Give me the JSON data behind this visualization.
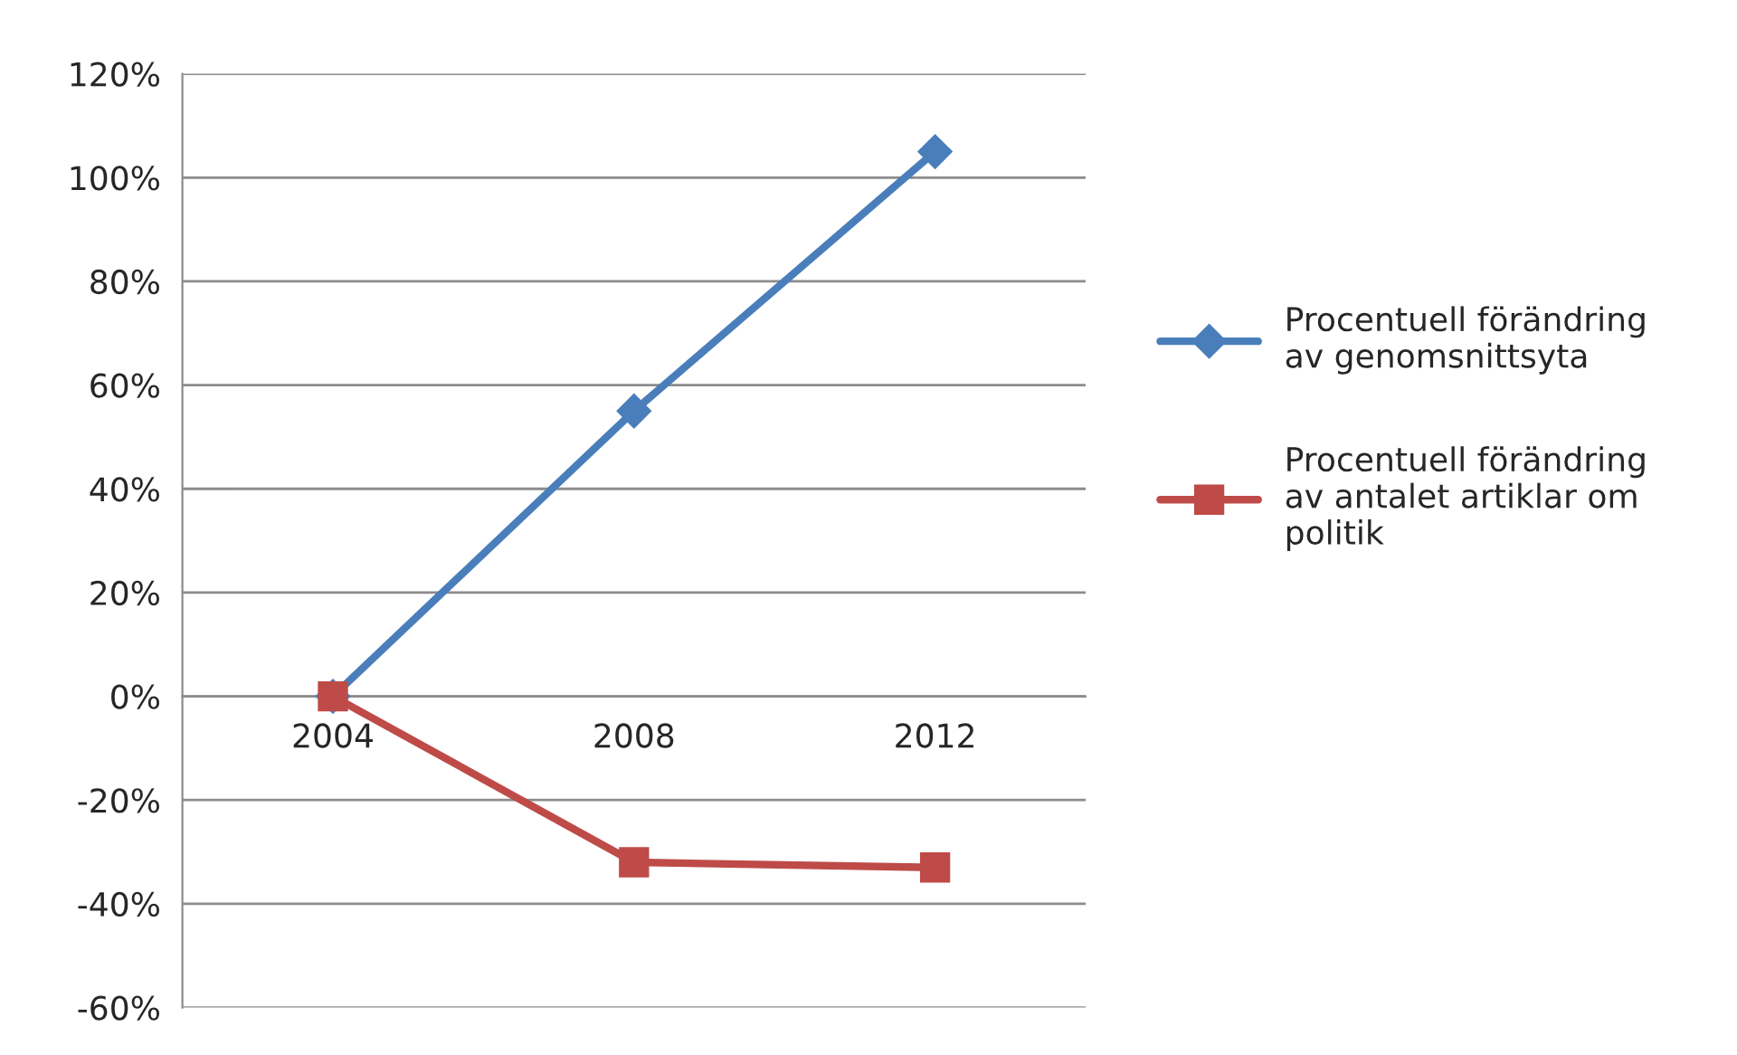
{
  "chart_data": {
    "type": "line",
    "categories": [
      "2004",
      "2008",
      "2012"
    ],
    "series": [
      {
        "name": "Procentuell förändring av genomsnittsyta",
        "color": "#4a7ebb",
        "values": [
          0,
          55,
          105
        ],
        "marker": "diamond"
      },
      {
        "name": "Procentuell förändring av antalet artiklar om politik",
        "color": "#be4b48",
        "values": [
          0,
          -32,
          -33
        ],
        "marker": "square"
      }
    ],
    "ylim": [
      -60,
      120
    ],
    "yticks": [
      {
        "value": -60,
        "label": "-60%"
      },
      {
        "value": -40,
        "label": "-40%"
      },
      {
        "value": -20,
        "label": "-20%"
      },
      {
        "value": 0,
        "label": "0%"
      },
      {
        "value": 20,
        "label": "20%"
      },
      {
        "value": 40,
        "label": "40%"
      },
      {
        "value": 60,
        "label": "60%"
      },
      {
        "value": 80,
        "label": "80%"
      },
      {
        "value": 100,
        "label": "100%"
      },
      {
        "value": 120,
        "label": "120%"
      }
    ],
    "grid": "y",
    "legend": "right",
    "line_style": "solid"
  }
}
